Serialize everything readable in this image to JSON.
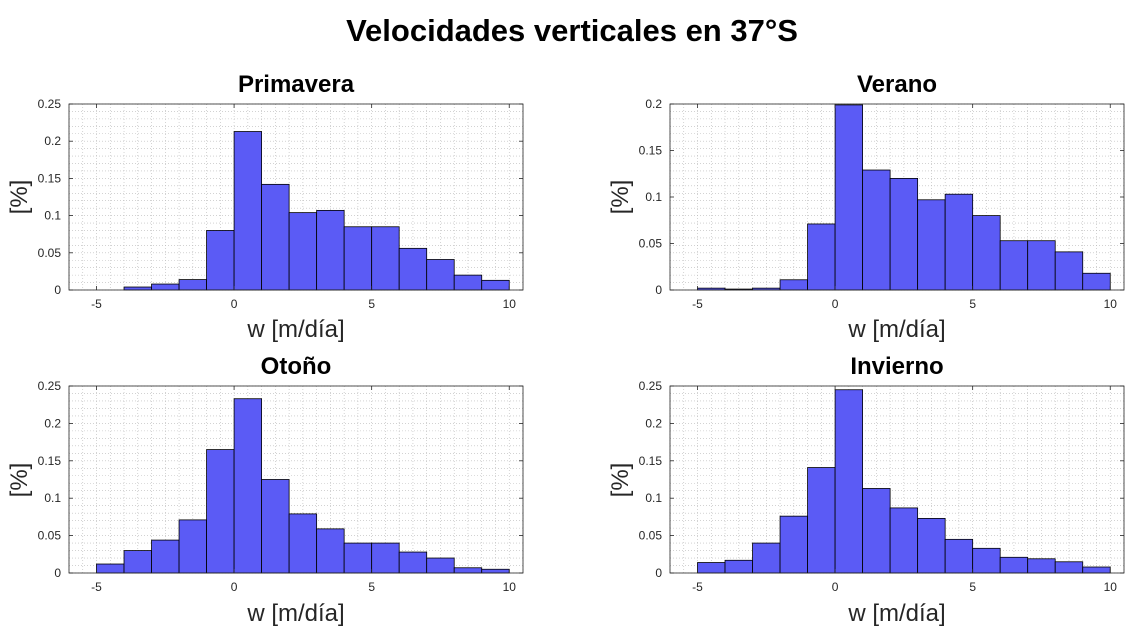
{
  "figure_title": "Velocidades verticales en 37°S",
  "colors": {
    "bar_fill": "#5b5bf5",
    "bar_edge": "#000000",
    "grid": "#b8b8b8",
    "axes": "#262626"
  },
  "chart_data": [
    {
      "type": "bar",
      "title": "Primavera",
      "xlabel": "w [m/día]",
      "ylabel": "[%]",
      "xlim": [
        -6,
        10.5
      ],
      "ylim": [
        0,
        0.25
      ],
      "grid": true,
      "xticks": [
        "-5",
        "0",
        "5",
        "10"
      ],
      "yticks": [
        "0",
        "0.05",
        "0.1",
        "0.15",
        "0.2",
        "0.25"
      ],
      "bins": [
        {
          "x0": -4,
          "x1": -3,
          "value": 0.004
        },
        {
          "x0": -3,
          "x1": -2,
          "value": 0.008
        },
        {
          "x0": -2,
          "x1": -1,
          "value": 0.014
        },
        {
          "x0": -1,
          "x1": 0,
          "value": 0.08
        },
        {
          "x0": 0,
          "x1": 1,
          "value": 0.213
        },
        {
          "x0": 1,
          "x1": 2,
          "value": 0.142
        },
        {
          "x0": 2,
          "x1": 3,
          "value": 0.104
        },
        {
          "x0": 3,
          "x1": 4,
          "value": 0.107
        },
        {
          "x0": 4,
          "x1": 5,
          "value": 0.085
        },
        {
          "x0": 5,
          "x1": 6,
          "value": 0.085
        },
        {
          "x0": 6,
          "x1": 7,
          "value": 0.056
        },
        {
          "x0": 7,
          "x1": 8,
          "value": 0.041
        },
        {
          "x0": 8,
          "x1": 9,
          "value": 0.02
        },
        {
          "x0": 9,
          "x1": 10,
          "value": 0.013
        }
      ]
    },
    {
      "type": "bar",
      "title": "Verano",
      "xlabel": "w [m/día]",
      "ylabel": "[%]",
      "xlim": [
        -6,
        10.5
      ],
      "ylim": [
        0,
        0.2
      ],
      "grid": true,
      "xticks": [
        "-5",
        "0",
        "5",
        "10"
      ],
      "yticks": [
        "0",
        "0.05",
        "0.1",
        "0.15",
        "0.2"
      ],
      "bins": [
        {
          "x0": -5,
          "x1": -4,
          "value": 0.002
        },
        {
          "x0": -4,
          "x1": -3,
          "value": 0.001
        },
        {
          "x0": -3,
          "x1": -2,
          "value": 0.002
        },
        {
          "x0": -2,
          "x1": -1,
          "value": 0.011
        },
        {
          "x0": -1,
          "x1": 0,
          "value": 0.071
        },
        {
          "x0": 0,
          "x1": 1,
          "value": 0.199
        },
        {
          "x0": 1,
          "x1": 2,
          "value": 0.129
        },
        {
          "x0": 2,
          "x1": 3,
          "value": 0.12
        },
        {
          "x0": 3,
          "x1": 4,
          "value": 0.097
        },
        {
          "x0": 4,
          "x1": 5,
          "value": 0.103
        },
        {
          "x0": 5,
          "x1": 6,
          "value": 0.08
        },
        {
          "x0": 6,
          "x1": 7,
          "value": 0.053
        },
        {
          "x0": 7,
          "x1": 8,
          "value": 0.053
        },
        {
          "x0": 8,
          "x1": 9,
          "value": 0.041
        },
        {
          "x0": 9,
          "x1": 10,
          "value": 0.018
        }
      ]
    },
    {
      "type": "bar",
      "title": "Otoño",
      "xlabel": "w [m/día]",
      "ylabel": "[%]",
      "xlim": [
        -6,
        10.5
      ],
      "ylim": [
        0,
        0.25
      ],
      "grid": true,
      "xticks": [
        "-5",
        "0",
        "5",
        "10"
      ],
      "yticks": [
        "0",
        "0.05",
        "0.1",
        "0.15",
        "0.2",
        "0.25"
      ],
      "bins": [
        {
          "x0": -5,
          "x1": -4,
          "value": 0.012
        },
        {
          "x0": -4,
          "x1": -3,
          "value": 0.03
        },
        {
          "x0": -3,
          "x1": -2,
          "value": 0.044
        },
        {
          "x0": -2,
          "x1": -1,
          "value": 0.071
        },
        {
          "x0": -1,
          "x1": 0,
          "value": 0.165
        },
        {
          "x0": 0,
          "x1": 1,
          "value": 0.233
        },
        {
          "x0": 1,
          "x1": 2,
          "value": 0.125
        },
        {
          "x0": 2,
          "x1": 3,
          "value": 0.079
        },
        {
          "x0": 3,
          "x1": 4,
          "value": 0.059
        },
        {
          "x0": 4,
          "x1": 5,
          "value": 0.04
        },
        {
          "x0": 5,
          "x1": 6,
          "value": 0.04
        },
        {
          "x0": 6,
          "x1": 7,
          "value": 0.028
        },
        {
          "x0": 7,
          "x1": 8,
          "value": 0.02
        },
        {
          "x0": 8,
          "x1": 9,
          "value": 0.007
        },
        {
          "x0": 9,
          "x1": 10,
          "value": 0.005
        }
      ]
    },
    {
      "type": "bar",
      "title": "Invierno",
      "xlabel": "w [m/día]",
      "ylabel": "[%]",
      "xlim": [
        -6,
        10.5
      ],
      "ylim": [
        0,
        0.25
      ],
      "grid": true,
      "xticks": [
        "-5",
        "0",
        "5",
        "10"
      ],
      "yticks": [
        "0",
        "0.05",
        "0.1",
        "0.15",
        "0.2",
        "0.25"
      ],
      "bins": [
        {
          "x0": -5,
          "x1": -4,
          "value": 0.014
        },
        {
          "x0": -4,
          "x1": -3,
          "value": 0.017
        },
        {
          "x0": -3,
          "x1": -2,
          "value": 0.04
        },
        {
          "x0": -2,
          "x1": -1,
          "value": 0.076
        },
        {
          "x0": -1,
          "x1": 0,
          "value": 0.141
        },
        {
          "x0": 0,
          "x1": 1,
          "value": 0.245
        },
        {
          "x0": 1,
          "x1": 2,
          "value": 0.113
        },
        {
          "x0": 2,
          "x1": 3,
          "value": 0.087
        },
        {
          "x0": 3,
          "x1": 4,
          "value": 0.073
        },
        {
          "x0": 4,
          "x1": 5,
          "value": 0.045
        },
        {
          "x0": 5,
          "x1": 6,
          "value": 0.033
        },
        {
          "x0": 6,
          "x1": 7,
          "value": 0.021
        },
        {
          "x0": 7,
          "x1": 8,
          "value": 0.019
        },
        {
          "x0": 8,
          "x1": 9,
          "value": 0.015
        },
        {
          "x0": 9,
          "x1": 10,
          "value": 0.008
        }
      ]
    }
  ]
}
